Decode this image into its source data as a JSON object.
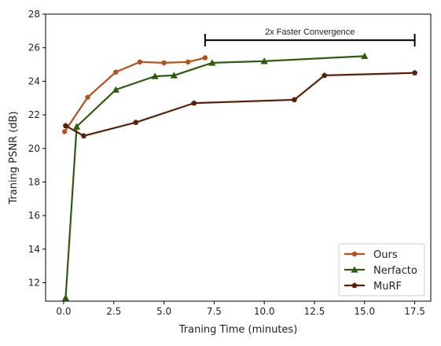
{
  "chart_data": {
    "type": "line",
    "title": "",
    "xlabel": "Traning Time (minutes)",
    "ylabel": "Traning PSNR (dB)",
    "xlim": [
      -0.9,
      18.3
    ],
    "ylim": [
      10.9,
      28
    ],
    "x_ticks": [
      0.0,
      2.5,
      5.0,
      7.5,
      10.0,
      12.5,
      15.0,
      17.5
    ],
    "x_tick_labels": [
      "0.0",
      "2.5",
      "5.0",
      "7.5",
      "10.0",
      "12.5",
      "15.0",
      "17.5"
    ],
    "y_ticks": [
      12,
      14,
      16,
      18,
      20,
      22,
      24,
      26,
      28
    ],
    "y_tick_labels": [
      "12",
      "14",
      "16",
      "18",
      "20",
      "22",
      "24",
      "26",
      "28"
    ],
    "grid": false,
    "legend_position": "lower-right",
    "series": [
      {
        "name": "Ours",
        "color": "#b5501a",
        "marker": "circle",
        "points": [
          [
            0.05,
            21.0
          ],
          [
            1.2,
            23.05
          ],
          [
            2.6,
            24.55
          ],
          [
            3.8,
            25.15
          ],
          [
            5.0,
            25.1
          ],
          [
            6.2,
            25.15
          ],
          [
            7.05,
            25.4
          ]
        ]
      },
      {
        "name": "Nerfacto",
        "color": "#2e5c0e",
        "marker": "triangle",
        "points": [
          [
            0.1,
            11.1
          ],
          [
            0.65,
            21.3
          ],
          [
            2.6,
            23.5
          ],
          [
            4.55,
            24.3
          ],
          [
            5.5,
            24.35
          ],
          [
            7.4,
            25.1
          ],
          [
            10.0,
            25.2
          ],
          [
            15.0,
            25.5
          ]
        ]
      },
      {
        "name": "MuRF",
        "color": "#5a2008",
        "marker": "pentagon",
        "points": [
          [
            0.1,
            21.35
          ],
          [
            1.0,
            20.75
          ],
          [
            3.6,
            21.55
          ],
          [
            6.5,
            22.7
          ],
          [
            11.5,
            22.9
          ],
          [
            13.0,
            24.35
          ],
          [
            17.5,
            24.5
          ]
        ]
      }
    ],
    "annotation": {
      "text": "2x Faster Convergence",
      "x_start": 7.05,
      "x_end": 17.5,
      "y": 26.45
    }
  }
}
